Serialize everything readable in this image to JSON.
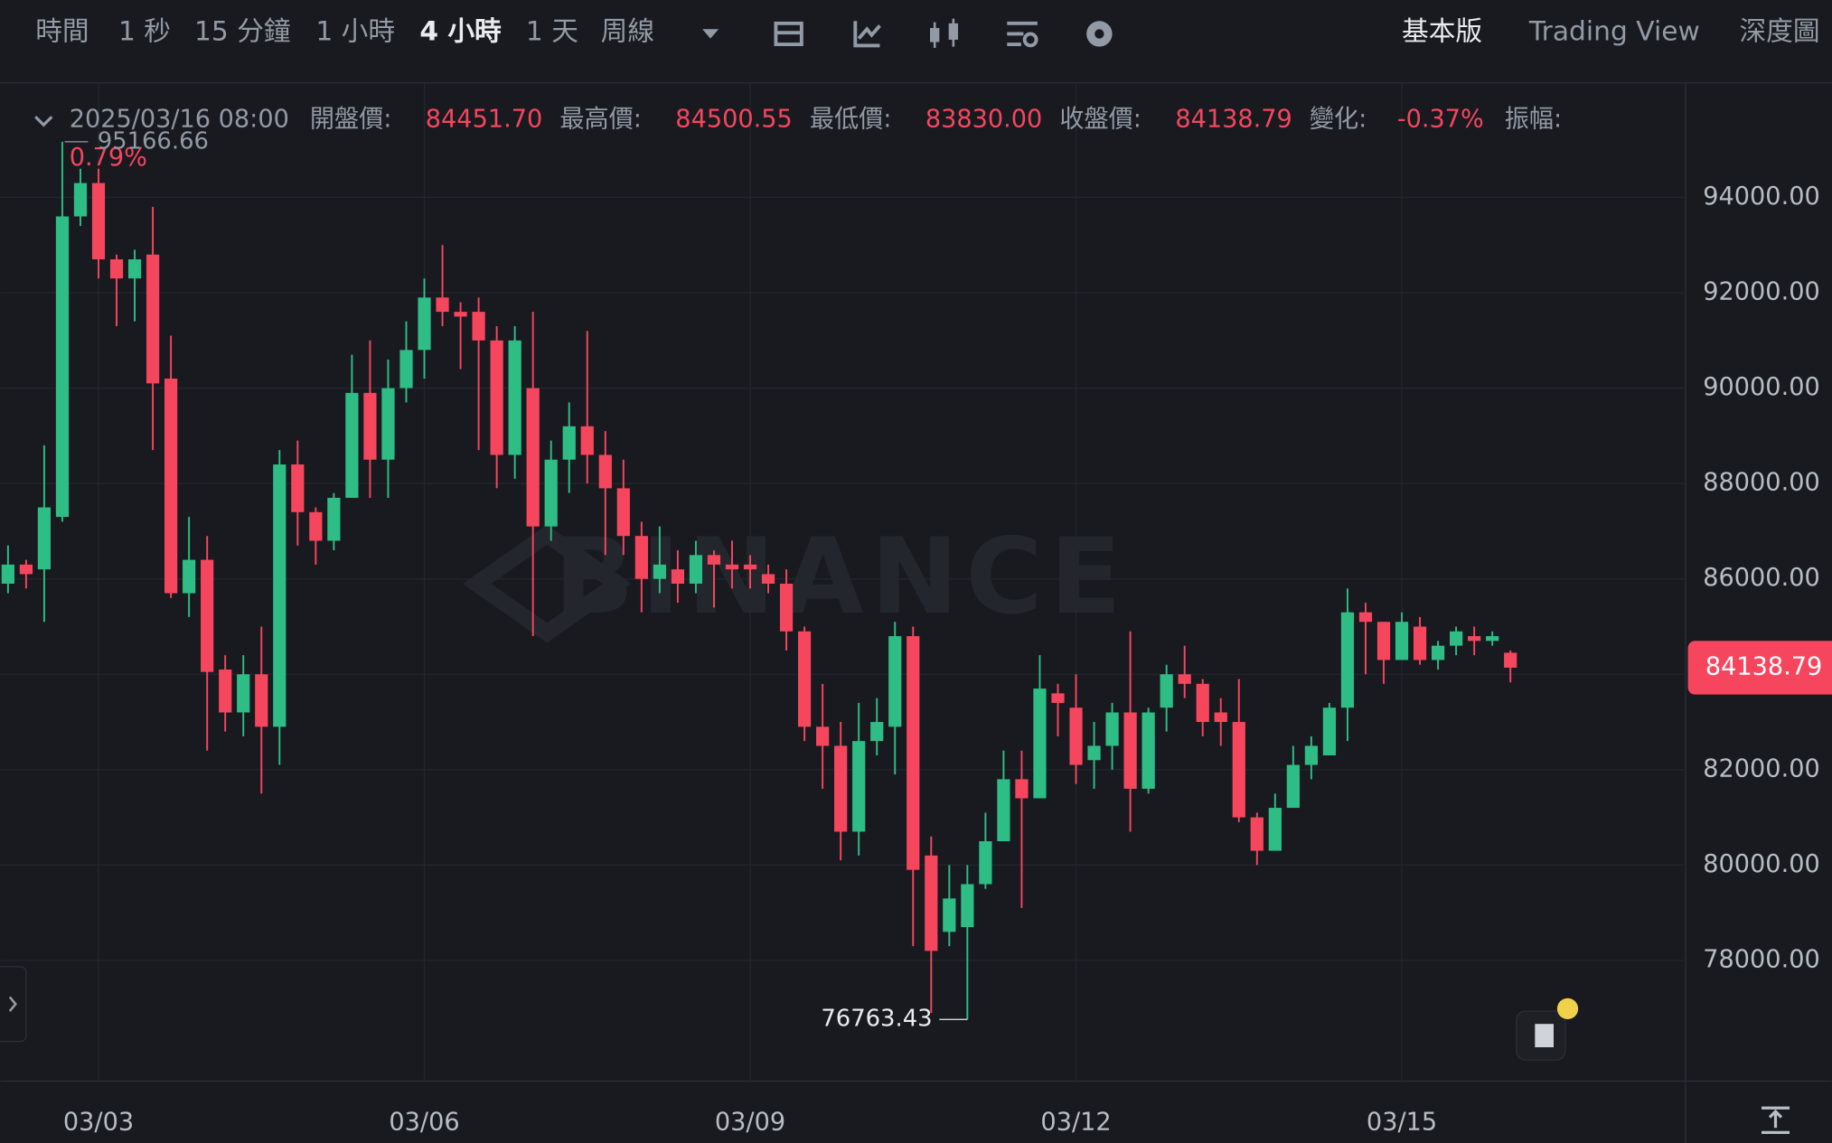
{
  "toolbar": {
    "intervals": [
      "時間",
      "1 秒",
      "15 分鐘",
      "1 小時",
      "4 小時",
      "1 天",
      "周線"
    ],
    "active_interval": 4,
    "views": [
      "基本版",
      "Trading View",
      "深度圖"
    ],
    "active_view": 0
  },
  "watermark": "BINANCE",
  "ohlc_header": {
    "date": "2025/03/16 08:00",
    "items": [
      {
        "label": "開盤價:",
        "value": "84451.70"
      },
      {
        "label": "最高價:",
        "value": "84500.55"
      },
      {
        "label": "最低價:",
        "value": "83830.00"
      },
      {
        "label": "收盤價:",
        "value": "84138.79"
      },
      {
        "label": "變化:",
        "value": "-0.37%"
      },
      {
        "label": "振幅:",
        "value": "0.79%"
      }
    ]
  },
  "chart_data": {
    "type": "candlestick",
    "categories": [
      null,
      null,
      null,
      null,
      null,
      "03/03",
      null,
      null,
      null,
      null,
      null,
      null,
      null,
      null,
      null,
      null,
      null,
      null,
      null,
      null,
      null,
      null,
      null,
      "03/06",
      null,
      null,
      null,
      null,
      null,
      null,
      null,
      null,
      null,
      null,
      null,
      null,
      null,
      null,
      null,
      null,
      null,
      "03/09",
      null,
      null,
      null,
      null,
      null,
      null,
      null,
      null,
      null,
      null,
      null,
      null,
      null,
      null,
      null,
      null,
      null,
      "03/12",
      null,
      null,
      null,
      null,
      null,
      null,
      null,
      null,
      null,
      null,
      null,
      null,
      null,
      null,
      null,
      null,
      null,
      "03/15",
      null,
      null,
      null,
      null,
      null,
      null
    ],
    "open": [
      85900,
      86300,
      86200,
      87300,
      93600,
      94300,
      92700,
      92300,
      92800,
      90200,
      85700,
      86400,
      84100,
      83200,
      84000,
      82900,
      88400,
      87400,
      86800,
      87700,
      89900,
      88500,
      90000,
      90800,
      91900,
      91600,
      91600,
      91000,
      88600,
      90000,
      87100,
      88500,
      89200,
      88600,
      87900,
      86900,
      86000,
      86200,
      85900,
      86500,
      86300,
      86300,
      86100,
      85900,
      84900,
      82900,
      82500,
      80700,
      82600,
      82900,
      84800,
      80200,
      78600,
      78700,
      79600,
      80500,
      81800,
      81400,
      83600,
      83300,
      82200,
      82500,
      83200,
      81600,
      83300,
      84000,
      83800,
      83200,
      83000,
      81000,
      80300,
      81200,
      82100,
      82300,
      83300,
      85300,
      85100,
      84300,
      85000,
      84300,
      84600,
      84800,
      84700,
      84451.7
    ],
    "high": [
      86700,
      86400,
      88800,
      95166.66,
      94600,
      94600,
      92800,
      92900,
      93800,
      91100,
      87300,
      86900,
      84400,
      84400,
      85000,
      88700,
      88900,
      87500,
      87800,
      90700,
      91000,
      90600,
      91400,
      92300,
      93000,
      91800,
      91900,
      91300,
      91300,
      91600,
      88900,
      89700,
      91200,
      89100,
      88500,
      87200,
      87100,
      86600,
      86800,
      86600,
      86800,
      86500,
      86300,
      86200,
      85000,
      83800,
      83000,
      83400,
      83500,
      85100,
      85000,
      80600,
      80000,
      80000,
      81100,
      82400,
      82400,
      84400,
      83800,
      84000,
      83000,
      83400,
      84900,
      83300,
      84200,
      84600,
      83900,
      83500,
      83900,
      81100,
      81500,
      82500,
      82700,
      83400,
      85800,
      85500,
      85100,
      85300,
      85200,
      84700,
      85000,
      85000,
      84900,
      84500.55
    ],
    "low": [
      85700,
      85800,
      85100,
      87200,
      93400,
      92300,
      91300,
      91400,
      88700,
      85600,
      85200,
      82400,
      82800,
      82700,
      81500,
      82100,
      86700,
      86300,
      86600,
      87700,
      87700,
      87700,
      89700,
      90200,
      91300,
      90400,
      88700,
      87900,
      88100,
      84800,
      86800,
      87800,
      88000,
      86500,
      86500,
      85300,
      85700,
      85500,
      85700,
      85400,
      85800,
      85800,
      85700,
      84500,
      82600,
      81600,
      80100,
      80200,
      82300,
      81900,
      78300,
      76900,
      78300,
      76763.43,
      79500,
      80500,
      79100,
      81400,
      82700,
      81700,
      81600,
      82000,
      80700,
      81500,
      82800,
      83500,
      82700,
      82500,
      80900,
      80000,
      80300,
      81200,
      81800,
      82300,
      82600,
      84000,
      83800,
      84300,
      84200,
      84100,
      84400,
      84400,
      84600,
      83830
    ],
    "close": [
      86300,
      86100,
      87500,
      93600,
      94300,
      92700,
      92300,
      92700,
      90100,
      85700,
      86400,
      84050,
      83200,
      84000,
      82900,
      88400,
      87400,
      86800,
      87700,
      89900,
      88500,
      90000,
      90800,
      91900,
      91600,
      91500,
      91000,
      88600,
      91000,
      87100,
      88500,
      89200,
      88600,
      87900,
      86900,
      86000,
      86300,
      85900,
      86500,
      86300,
      86200,
      86200,
      85900,
      84900,
      82900,
      82500,
      80700,
      82600,
      83000,
      84800,
      79900,
      78200,
      79300,
      79600,
      80500,
      81800,
      81400,
      83700,
      83400,
      82100,
      82500,
      83200,
      81600,
      83200,
      84000,
      83800,
      83000,
      83000,
      81000,
      80300,
      81200,
      82100,
      82500,
      83300,
      85300,
      85100,
      84300,
      85100,
      84300,
      84600,
      84900,
      84700,
      84800,
      84138.79
    ],
    "up_color": "#2ebd85",
    "down_color": "#f6465d",
    "ylim": [
      75470,
      96400
    ],
    "yticks": [
      {
        "value": 78000,
        "label": "78000.00"
      },
      {
        "value": 80000,
        "label": "80000.00"
      },
      {
        "value": 82000,
        "label": "82000.00"
      },
      {
        "value": 84000,
        "label": "84000.00"
      },
      {
        "value": 86000,
        "label": "86000.00"
      },
      {
        "value": 88000,
        "label": "88000.00"
      },
      {
        "value": 90000,
        "label": "90000.00"
      },
      {
        "value": 92000,
        "label": "92000.00"
      },
      {
        "value": 94000,
        "label": "94000.00"
      }
    ],
    "grid": true,
    "annotations": [
      {
        "index": 3,
        "field": "high"
      },
      {
        "index": 53,
        "field": "low"
      }
    ],
    "last_price_tag": true
  }
}
